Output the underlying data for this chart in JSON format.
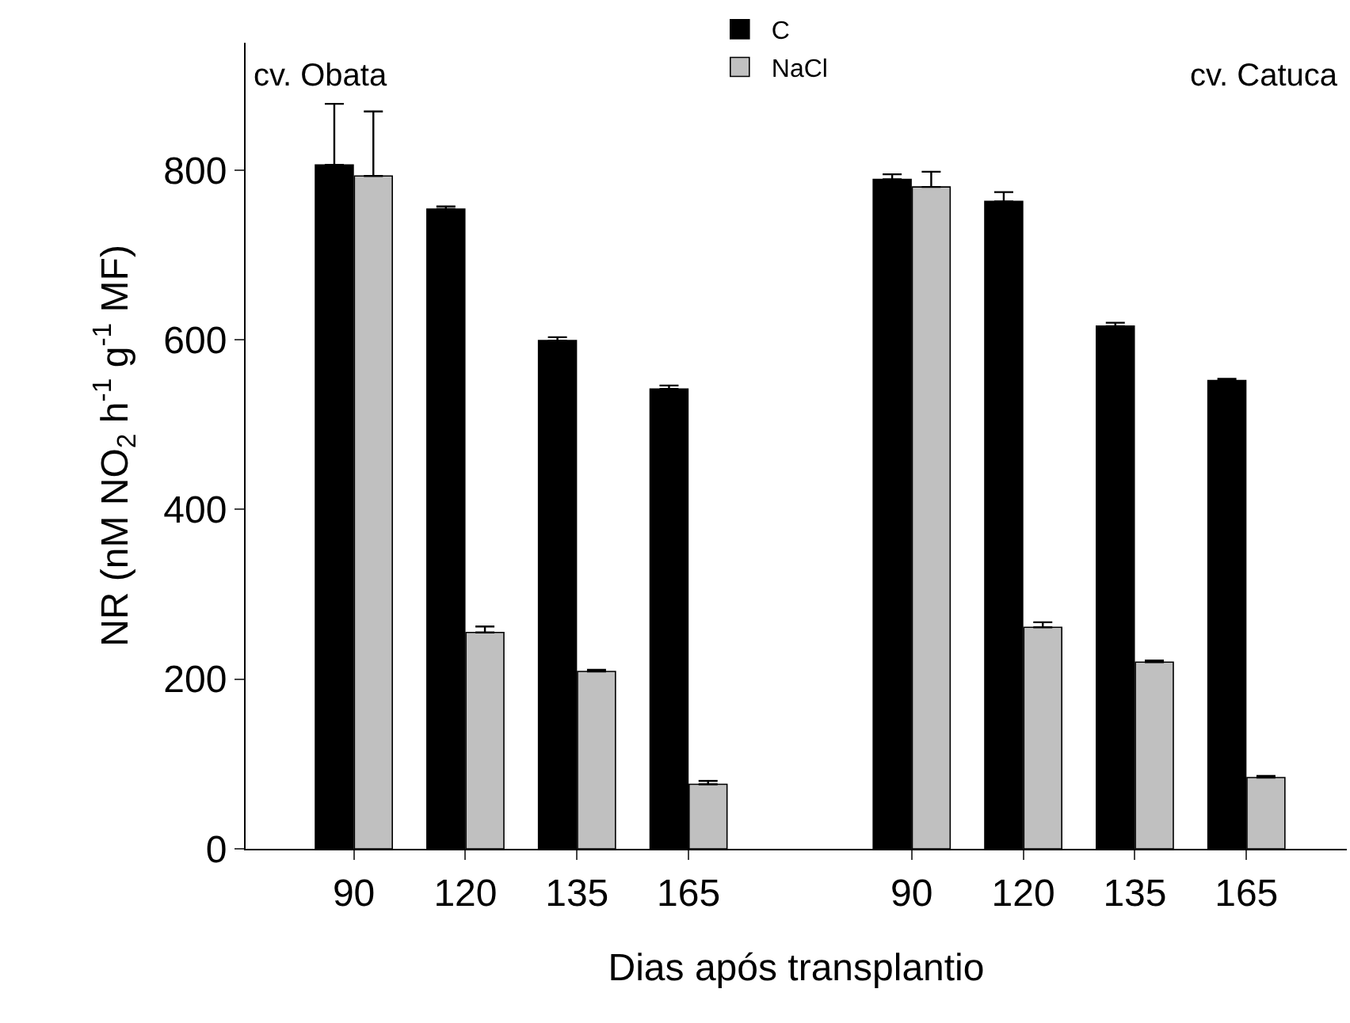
{
  "chart_data": {
    "type": "bar",
    "xlabel": "Dias após transplantio",
    "ylabel": "NR (nM NO$_{2}$ h$^{-1}$ g$^{-1}$ MF)",
    "categories": [
      "90",
      "120",
      "135",
      "165",
      null,
      "90",
      "120",
      "135",
      "165"
    ],
    "series": [
      {
        "name": "C",
        "color": "#000000",
        "values": [
          806,
          754,
          599,
          542,
          null,
          789,
          763,
          616,
          552
        ],
        "errors": [
          [
            806,
            878
          ],
          [
            754,
            757
          ],
          [
            599,
            603
          ],
          [
            542,
            546
          ],
          null,
          [
            789,
            795
          ],
          [
            763,
            774
          ],
          [
            616,
            620
          ],
          [
            552,
            554
          ]
        ]
      },
      {
        "name": "NaCl",
        "color": "#c0c0c0",
        "values": [
          793,
          255,
          209,
          76,
          null,
          780,
          261,
          220,
          84
        ],
        "errors": [
          [
            793,
            869
          ],
          [
            255,
            262
          ],
          [
            209,
            211
          ],
          [
            76,
            80
          ],
          null,
          [
            780,
            798
          ],
          [
            261,
            267
          ],
          [
            220,
            222
          ],
          [
            84,
            86
          ]
        ]
      }
    ],
    "ylim": [
      0,
      950
    ],
    "yticks": [
      0,
      200,
      400,
      600,
      800
    ],
    "legend": "top",
    "annotations": [
      "cv. Obata",
      "cv. Catuca"
    ]
  }
}
